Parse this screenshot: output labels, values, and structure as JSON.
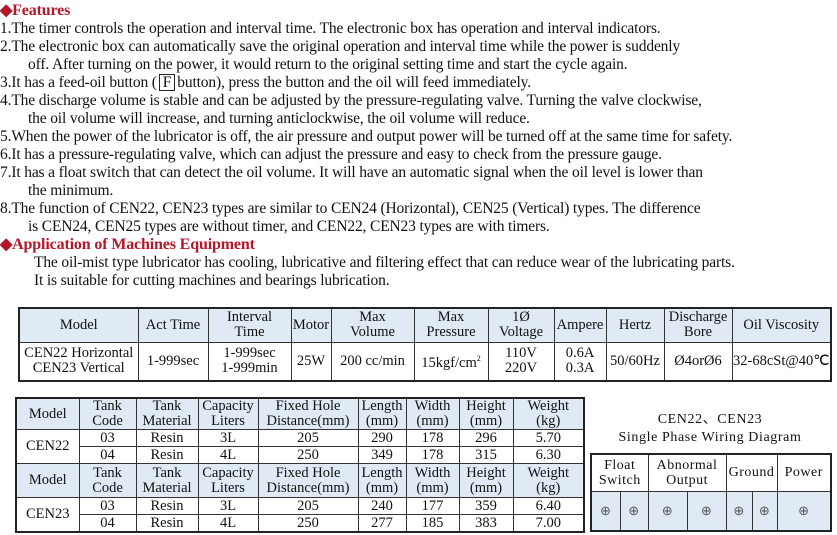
{
  "features": {
    "heading": "Features",
    "lines": [
      "1.The timer controls the operation and interval time. The electronic box has operation and interval indicators.",
      "2.The electronic box can automatically save the original operation and interval time while the power is suddenly",
      "off. After turning on the power, it would return to the original setting time and start the cycle again.",
      "3.It has a feed-oil button (",
      "button), press the button and the oil will feed immediately.",
      "4.The discharge volume is stable and can be adjusted by the pressure-regulating valve. Turning the valve clockwise,",
      "the oil volume will increase, and turning anticlockwise, the oil volume will reduce.",
      "5.When the power of the lubricator is off, the air pressure and output power will be turned off at the same time for safety.",
      "6.It has a pressure-regulating valve, which can adjust the pressure and easy to check from the pressure gauge.",
      "7.It has a float switch that can detect the oil volume. It will have an automatic signal when the oil level is lower than",
      "the minimum.",
      "8.The function of CEN22, CEN23 types are similar to CEN24 (Horizontal), CEN25 (Vertical) types. The difference",
      "is CEN24, CEN25 types are without timer, and CEN22, CEN23 types are with timers."
    ],
    "button_key": "F"
  },
  "application": {
    "heading": "Application of Machines Equipment",
    "lines": [
      "The oil-mist type lubricator has cooling, lubricative and filtering effect that can reduce wear of the lubricating parts.",
      "It is suitable for cutting machines and bearings lubrication."
    ]
  },
  "spec_table": {
    "headers": [
      "Model",
      "Act Time",
      "Interval",
      "Time",
      "Motor",
      "Max",
      "Volume",
      "Max",
      "Pressure",
      "1Ø Voltage",
      "Ampere",
      "Hertz",
      "Discharge",
      "Bore",
      "Oil Viscosity"
    ],
    "row": {
      "model": [
        "CEN22 Horizontal",
        "CEN23 Vertical"
      ],
      "act_time": "1-999sec",
      "interval": [
        "1-999sec",
        "1-999min"
      ],
      "motor": "25W",
      "max_volume": "200 cc/min",
      "max_pressure": "15kgf/cm",
      "pressure_sup": "2",
      "voltage": [
        "110V",
        "220V"
      ],
      "ampere": [
        "0.6A",
        "0.3A"
      ],
      "hertz": "50/60Hz",
      "bore": "Ø4orØ6",
      "viscosity": "32-68cSt@40℃"
    }
  },
  "dim_table": {
    "headers": [
      [
        "Model"
      ],
      [
        "Tank",
        "Code"
      ],
      [
        "Tank",
        "Material"
      ],
      [
        "Capacity",
        "Liters"
      ],
      [
        "Fixed Hole",
        "Distance(mm)"
      ],
      [
        "Length",
        "(mm)"
      ],
      [
        "Width",
        "(mm)"
      ],
      [
        "Height",
        "(mm)"
      ],
      [
        "Weight",
        "(kg)"
      ]
    ],
    "groups": [
      {
        "model": "CEN22",
        "rows": [
          [
            "03",
            "Resin",
            "3L",
            "205",
            "290",
            "178",
            "296",
            "5.70"
          ],
          [
            "04",
            "Resin",
            "4L",
            "250",
            "349",
            "178",
            "315",
            "6.30"
          ]
        ]
      },
      {
        "model": "CEN23",
        "rows": [
          [
            "03",
            "Resin",
            "3L",
            "205",
            "240",
            "177",
            "359",
            "6.40"
          ],
          [
            "04",
            "Resin",
            "4L",
            "250",
            "277",
            "185",
            "383",
            "7.00"
          ]
        ]
      }
    ]
  },
  "wiring": {
    "title1": "CEN22、CEN23",
    "title2": "Single Phase Wiring Diagram",
    "labels": [
      [
        "Float",
        "Switch"
      ],
      [
        "Abnormal",
        "Output"
      ],
      [
        "Ground"
      ],
      [
        "Power"
      ]
    ],
    "terminal_symbol": "⊕"
  },
  "colors": {
    "heading": "#b5172a",
    "header_fill": "#dfeaf4"
  }
}
